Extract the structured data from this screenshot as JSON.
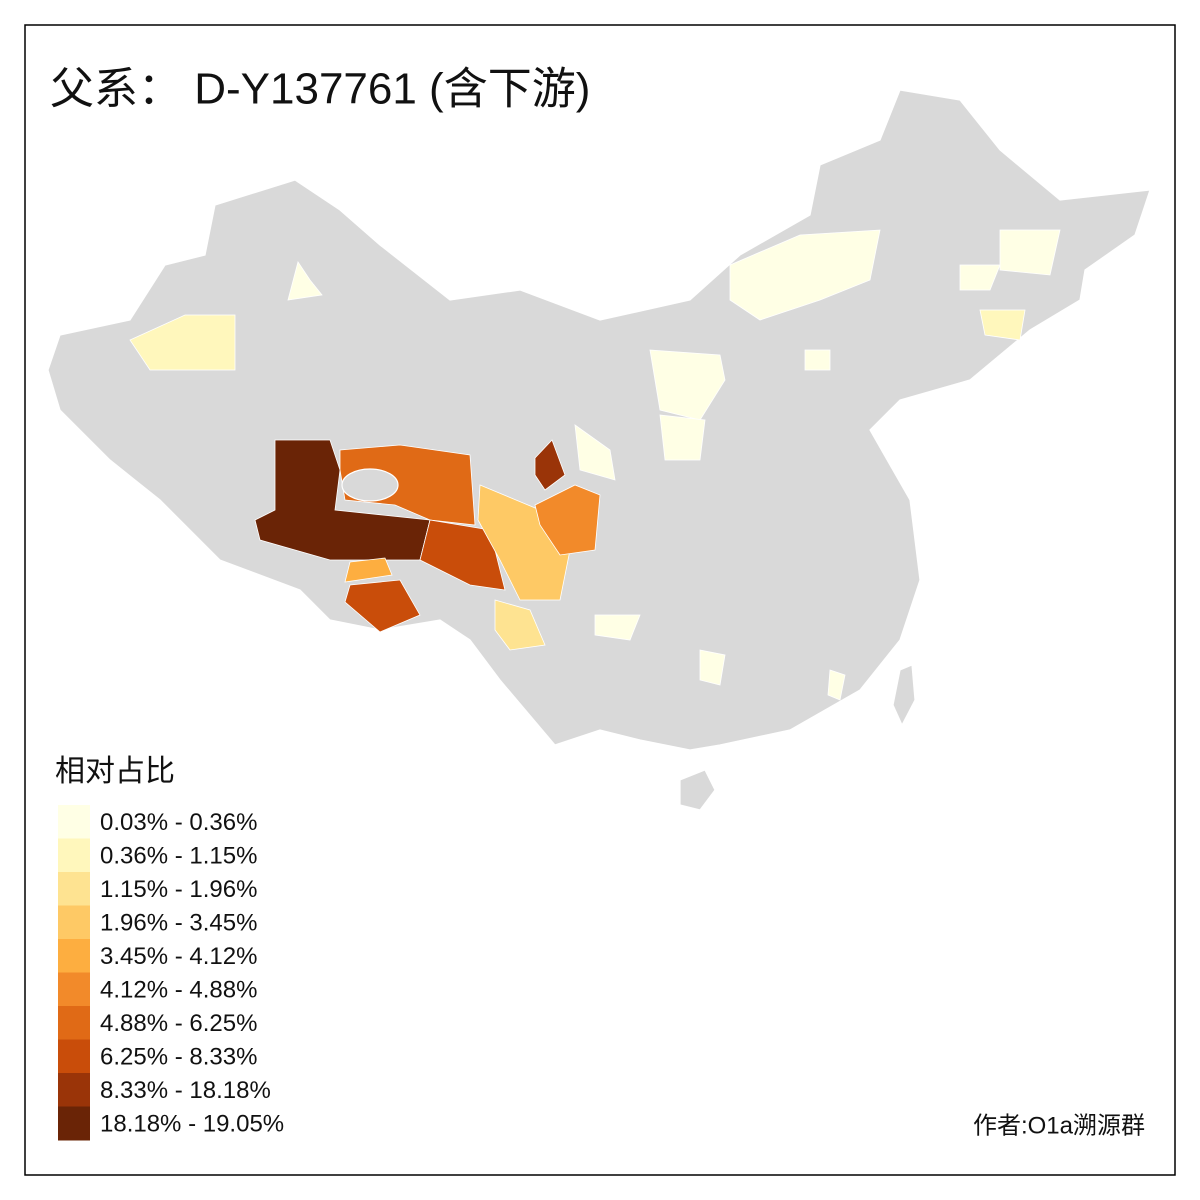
{
  "title": "父系： D-Y137761 (含下游)",
  "legend": {
    "title": "相对占比",
    "items": [
      {
        "label": "0.03% - 0.36%",
        "color": "#ffffe5"
      },
      {
        "label": "0.36% - 1.15%",
        "color": "#fff7bc"
      },
      {
        "label": "1.15% - 1.96%",
        "color": "#fee391"
      },
      {
        "label": "1.96% - 3.45%",
        "color": "#fec965"
      },
      {
        "label": "3.45% - 4.12%",
        "color": "#fdae40"
      },
      {
        "label": "4.12% - 4.88%",
        "color": "#f28a2a"
      },
      {
        "label": "4.88% - 6.25%",
        "color": "#e06a16"
      },
      {
        "label": "6.25% - 8.33%",
        "color": "#c94d0a"
      },
      {
        "label": "8.33% - 18.18%",
        "color": "#9a3408"
      },
      {
        "label": "18.18% - 19.05%",
        "color": "#6a2406"
      }
    ]
  },
  "author": "作者:O1a溯源群"
}
